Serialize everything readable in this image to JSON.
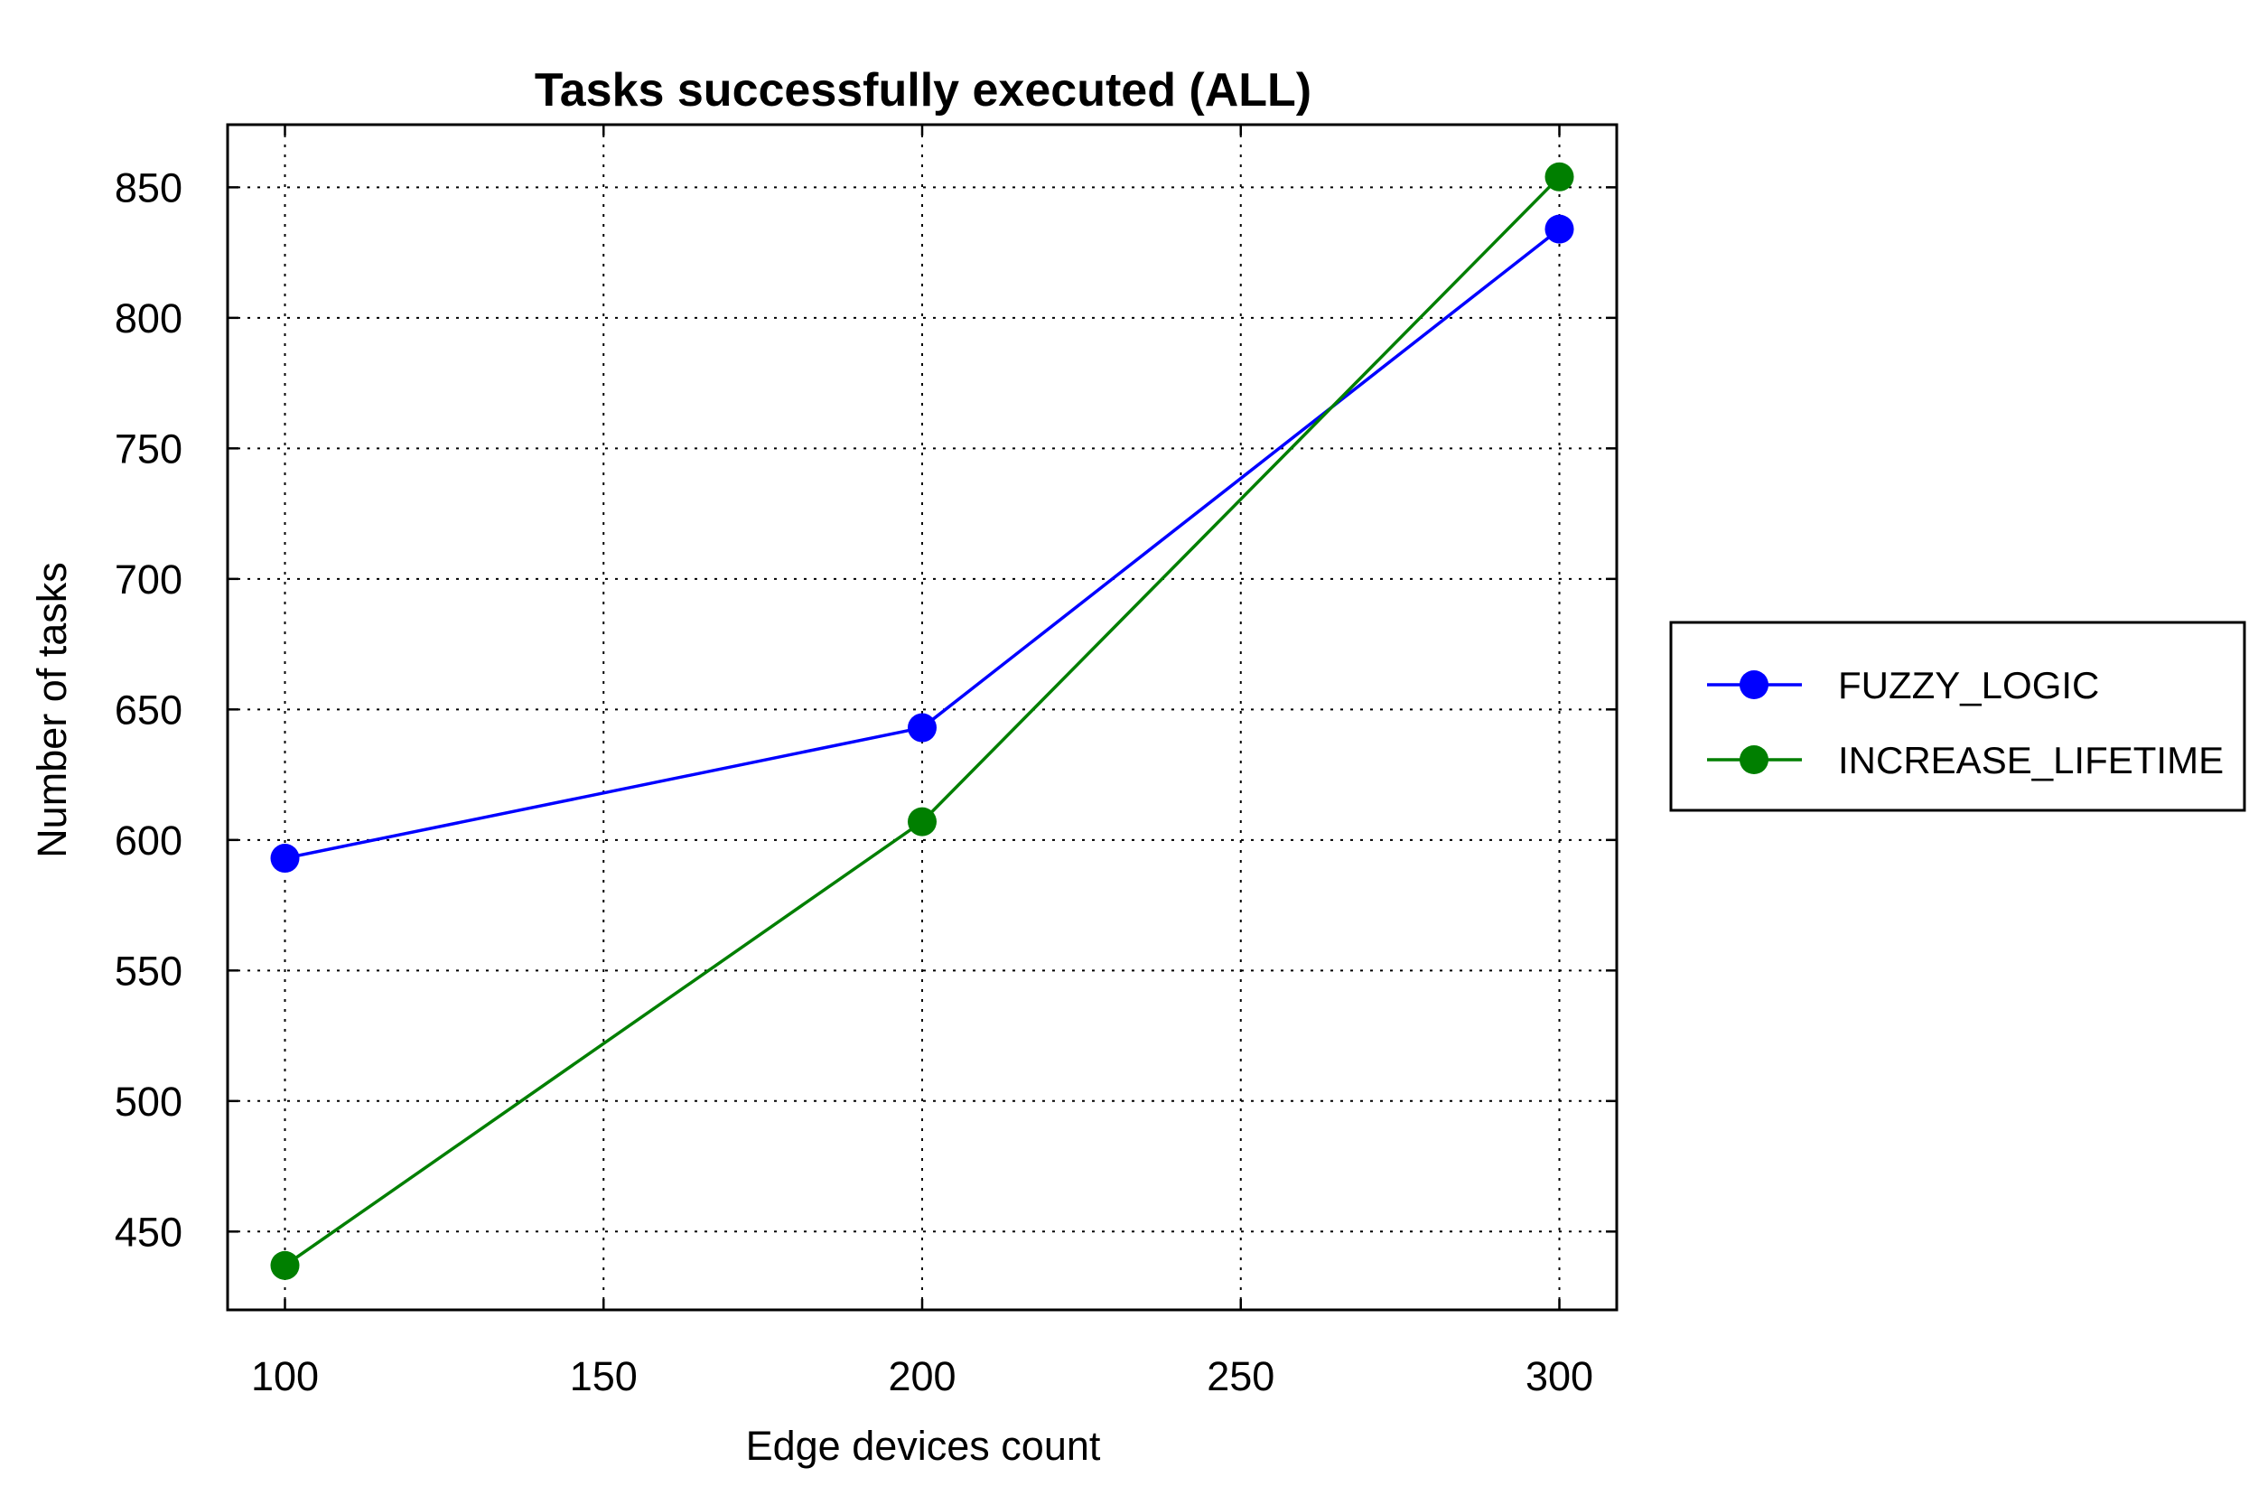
{
  "chart_data": {
    "type": "line",
    "title": "Tasks successfully executed (ALL)",
    "xlabel": "Edge devices count",
    "ylabel": "Number of tasks",
    "x": [
      100,
      200,
      300
    ],
    "xlim": [
      91,
      309
    ],
    "ylim": [
      420,
      874
    ],
    "xticks": [
      100,
      150,
      200,
      250,
      300
    ],
    "yticks": [
      450,
      500,
      550,
      600,
      650,
      700,
      750,
      800,
      850
    ],
    "grid": true,
    "legend_position": "outside-right",
    "series": [
      {
        "name": "FUZZY_LOGIC",
        "color": "#0000ff",
        "values": [
          593,
          643,
          834
        ]
      },
      {
        "name": "INCREASE_LIFETIME",
        "color": "#007f00",
        "values": [
          437,
          607,
          854
        ]
      }
    ]
  }
}
